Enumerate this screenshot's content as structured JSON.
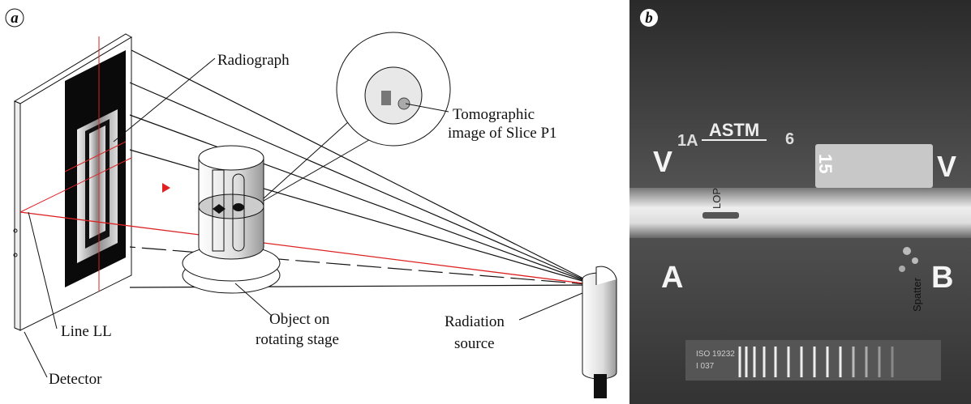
{
  "panel_a": {
    "label": "a",
    "radiograph": "Radiograph",
    "tomographic_image": [
      "Tomographic",
      "image of Slice P1"
    ],
    "line_ll": "Line LL",
    "object": [
      "Object on",
      "rotating stage"
    ],
    "radiation_source": [
      "Radiation",
      "source"
    ],
    "detector": "Detector"
  },
  "panel_b": {
    "label": "b",
    "astm": "ASTM",
    "iqi_1a": "1A",
    "iqi_6": "6",
    "v_left": "V",
    "plate_number": "15",
    "v_right": "V",
    "lop": "LOP",
    "side_a": "A",
    "side_b": "B",
    "spatter": "Spatter",
    "gauge_line1": "ISO 19232",
    "gauge_line2": "I 037"
  }
}
